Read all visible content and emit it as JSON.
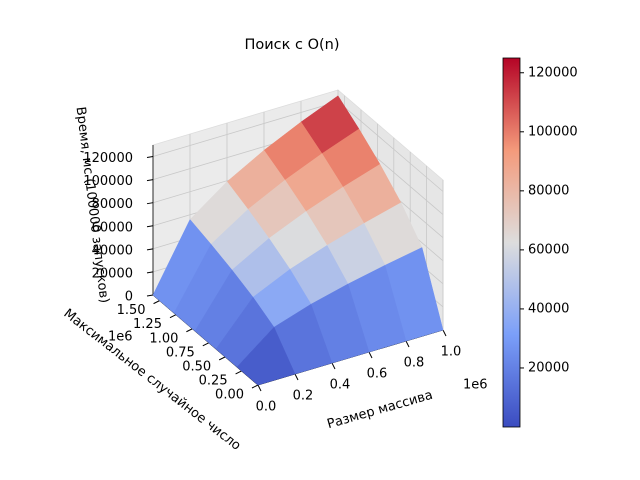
{
  "chart_data": {
    "type": "surface",
    "title": "Поиск с O(n)",
    "xlabel": "Размер массива",
    "ylabel": "Максимальное случайное число",
    "zlabel": "Время, мс (100000 запусков)",
    "x": [
      0,
      200000,
      400000,
      600000,
      800000,
      1000000
    ],
    "y": [
      0,
      320000,
      640000,
      960000,
      1280000,
      1600000
    ],
    "z": [
      [
        0,
        0,
        0,
        0,
        0,
        0
      ],
      [
        0,
        25000,
        35400,
        43300,
        50000,
        55900
      ],
      [
        0,
        35400,
        50000,
        61200,
        70700,
        79100
      ],
      [
        0,
        43300,
        61200,
        75000,
        86600,
        96800
      ],
      [
        0,
        50000,
        70700,
        86600,
        100000,
        111800
      ],
      [
        0,
        55900,
        79100,
        96800,
        111800,
        125000
      ]
    ],
    "xlim": [
      0,
      1000000
    ],
    "ylim": [
      0,
      1600000
    ],
    "zlim": [
      0,
      130000
    ],
    "xticks": [
      {
        "value": 0,
        "label": "0.0"
      },
      {
        "value": 200000,
        "label": "0.2"
      },
      {
        "value": 400000,
        "label": "0.4"
      },
      {
        "value": 600000,
        "label": "0.6"
      },
      {
        "value": 800000,
        "label": "0.8"
      },
      {
        "value": 1000000,
        "label": "1.0"
      }
    ],
    "yticks": [
      {
        "value": 0,
        "label": "0.00"
      },
      {
        "value": 250000,
        "label": "0.25"
      },
      {
        "value": 500000,
        "label": "0.50"
      },
      {
        "value": 750000,
        "label": "0.75"
      },
      {
        "value": 1000000,
        "label": "1.00"
      },
      {
        "value": 1250000,
        "label": "1.25"
      },
      {
        "value": 1500000,
        "label": "1.50"
      }
    ],
    "zticks": [
      0,
      20000,
      40000,
      60000,
      80000,
      100000,
      120000
    ],
    "x_offset_label": "1e6",
    "y_offset_label": "1e6",
    "colormap": "coolwarm",
    "colorbar": {
      "lim": [
        0,
        125000
      ],
      "ticks": [
        20000,
        40000,
        60000,
        80000,
        100000,
        120000
      ]
    }
  }
}
